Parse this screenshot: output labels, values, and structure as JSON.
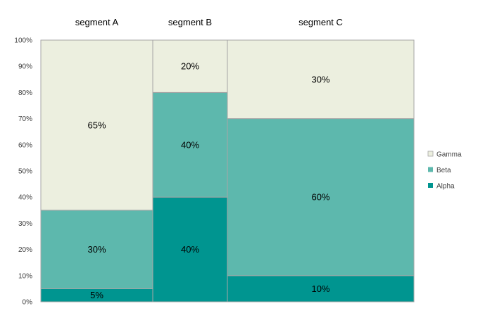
{
  "chart_data": {
    "type": "marimekko",
    "title": "",
    "xlabel": "",
    "ylabel": "",
    "ylim": [
      0,
      100
    ],
    "y_ticks": [
      "0%",
      "10%",
      "20%",
      "30%",
      "40%",
      "50%",
      "60%",
      "70%",
      "80%",
      "90%",
      "100%"
    ],
    "categories": [
      "segment A",
      "segment B",
      "segment C"
    ],
    "category_width_share": [
      30,
      20,
      50
    ],
    "series": [
      {
        "name": "Alpha",
        "color": "#009590",
        "values": [
          5,
          40,
          10
        ],
        "labels": [
          "5%",
          "40%",
          "10%"
        ]
      },
      {
        "name": "Beta",
        "color": "#5DB8AD",
        "values": [
          30,
          40,
          60
        ],
        "labels": [
          "30%",
          "40%",
          "60%"
        ]
      },
      {
        "name": "Gamma",
        "color": "#ECEFDF",
        "values": [
          65,
          20,
          30
        ],
        "labels": [
          "65%",
          "20%",
          "30%"
        ]
      }
    ],
    "legend": {
      "position": "right",
      "order": [
        "Gamma",
        "Beta",
        "Alpha"
      ]
    },
    "grid": false,
    "segment_border_color": "#A6A6A6"
  }
}
